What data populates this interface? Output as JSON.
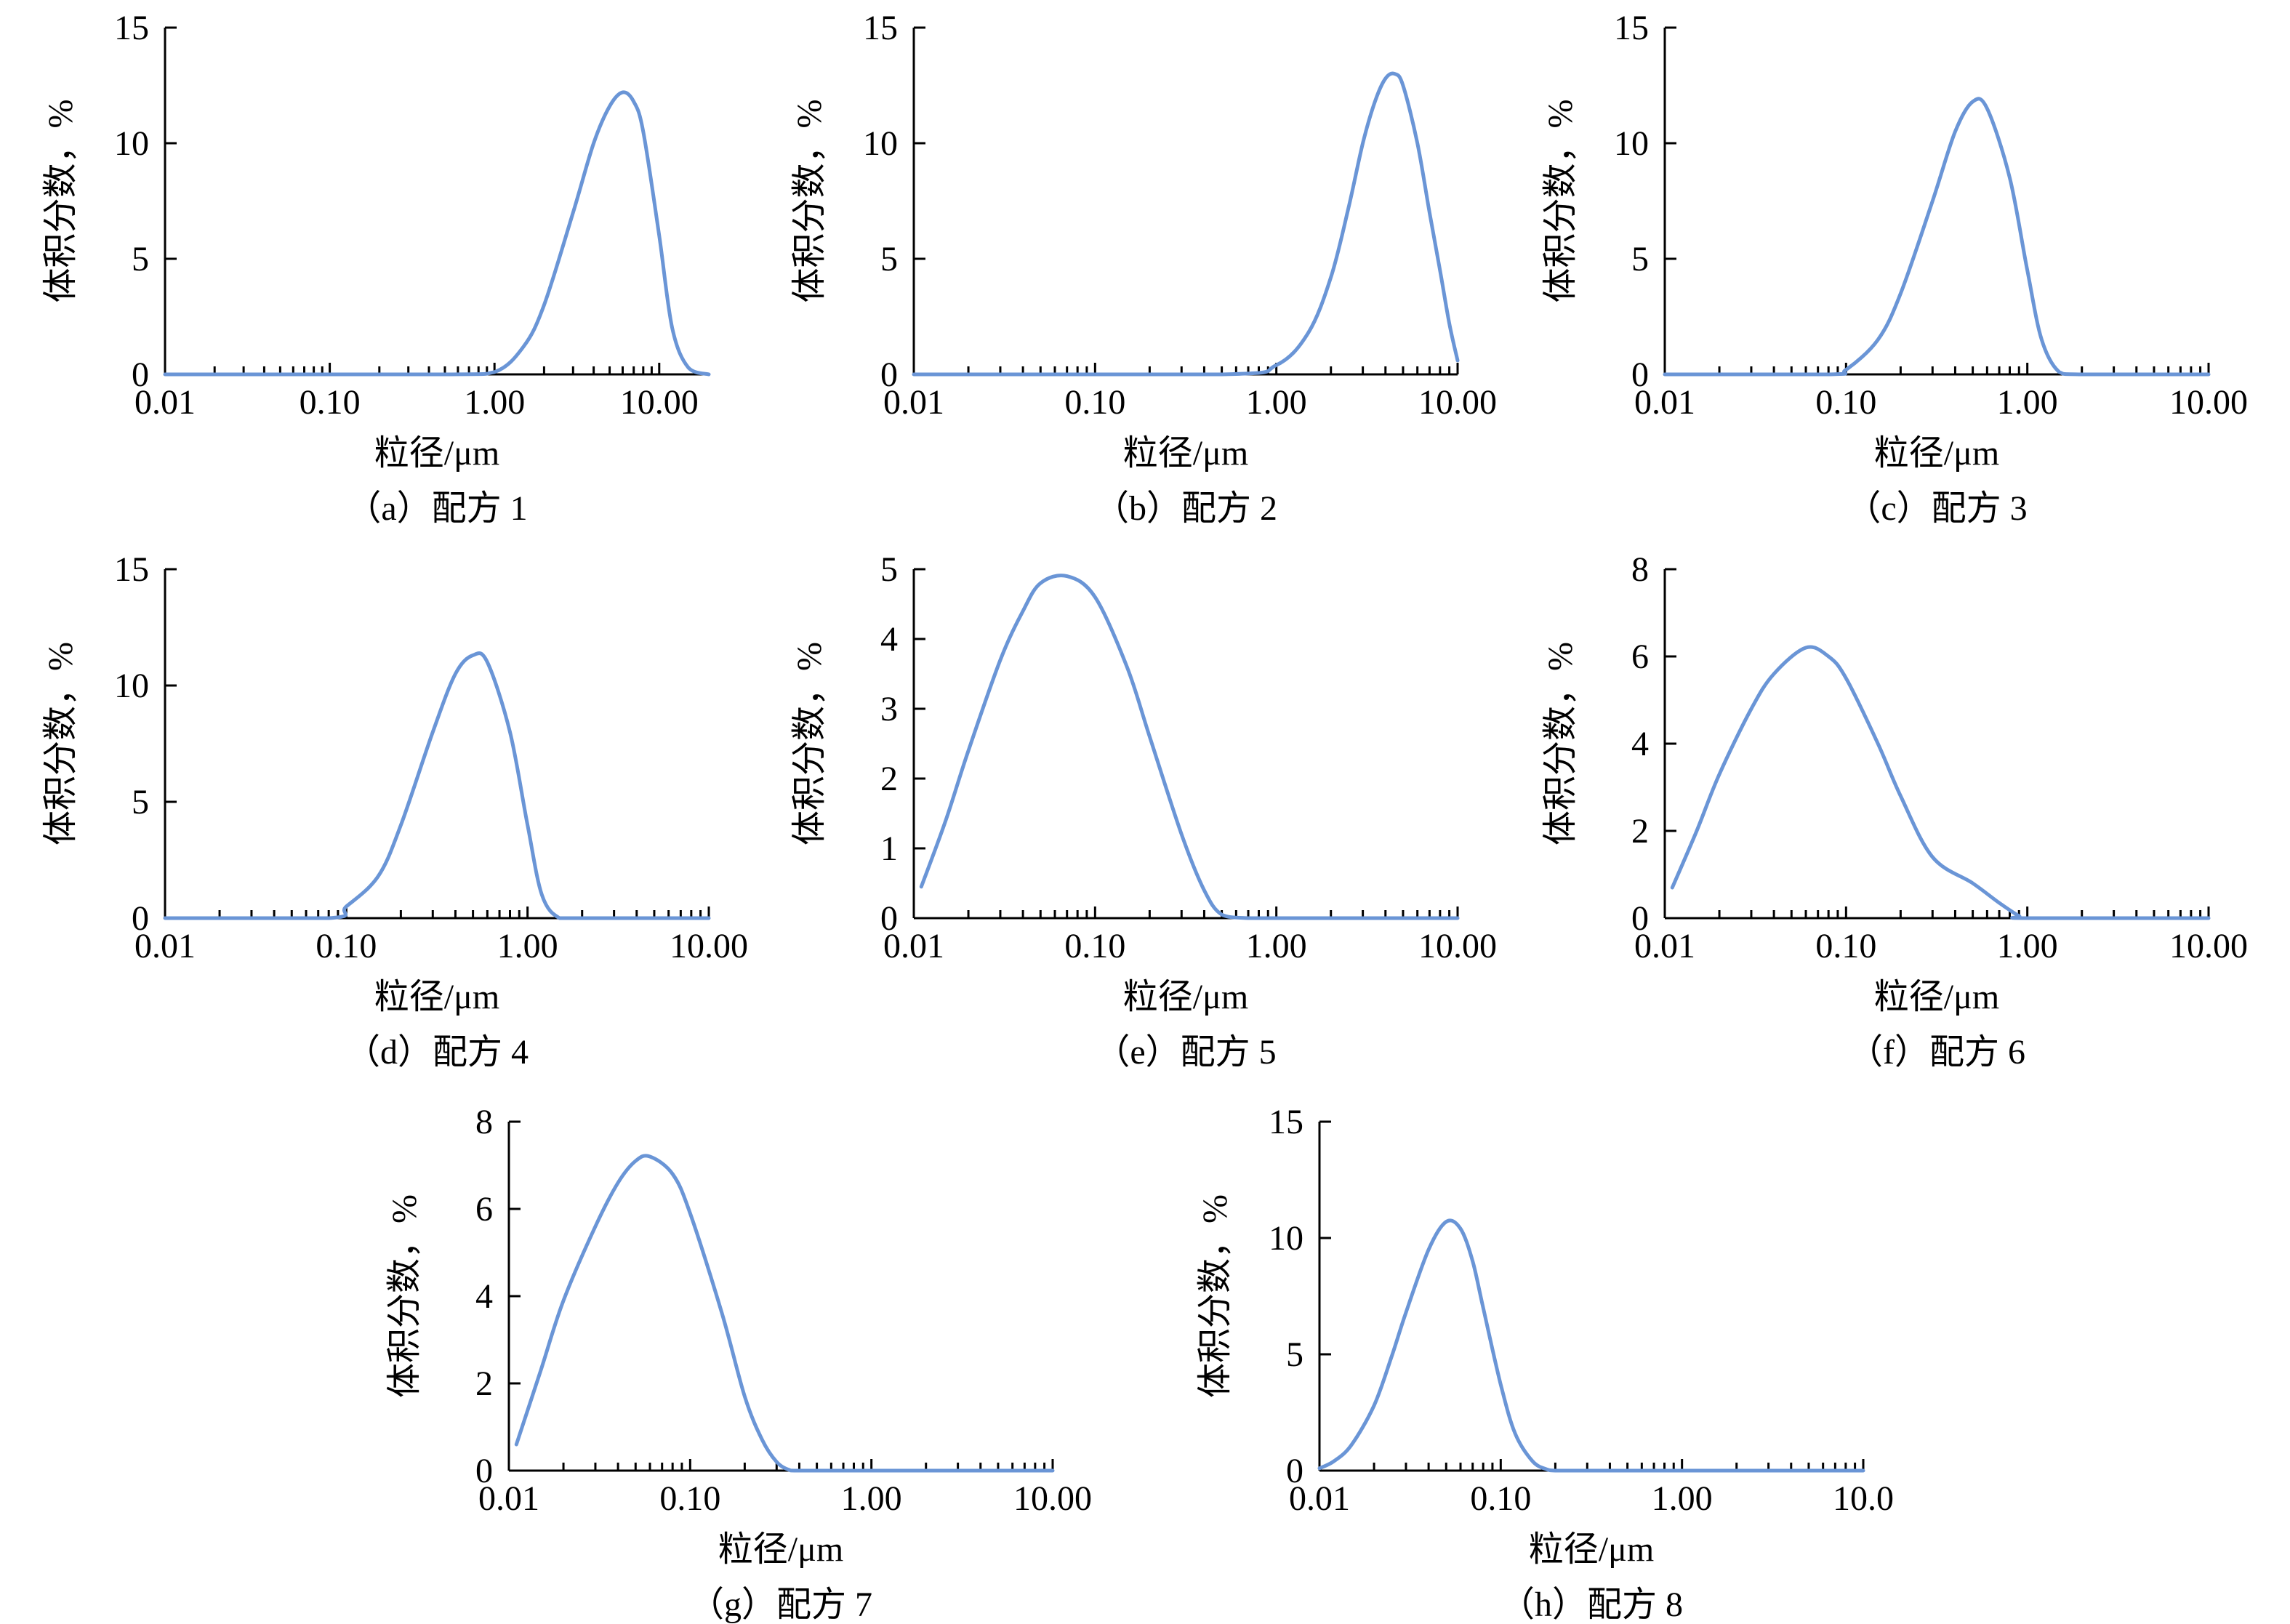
{
  "style": {
    "line_color": "#6a95d6",
    "axis_color": "#000000",
    "background": "#ffffff"
  },
  "chart_data": [
    {
      "panel": "a",
      "type": "line",
      "caption": "（a）配方 1",
      "xlabel": "粒径/μm",
      "ylabel": "体积分数，%",
      "x_scale": "log",
      "xlim": [
        0.01,
        20
      ],
      "ylim": [
        0,
        15
      ],
      "x_ticks": [
        {
          "value": 0.01,
          "label": "0.01"
        },
        {
          "value": 0.1,
          "label": "0.10"
        },
        {
          "value": 1,
          "label": "1.00"
        },
        {
          "value": 10,
          "label": "10.00"
        }
      ],
      "y_ticks": [
        {
          "value": 0,
          "label": "0"
        },
        {
          "value": 5,
          "label": "5"
        },
        {
          "value": 10,
          "label": "10"
        },
        {
          "value": 15,
          "label": "15"
        }
      ],
      "series": [
        {
          "x": [
            0.01,
            0.5,
            1.0,
            1.5,
            2.0,
            3.0,
            4.0,
            5.0,
            6.0,
            7.0,
            8.0,
            10.0,
            12.0,
            15.0,
            20.0
          ],
          "y": [
            0,
            0,
            0.1,
            1.2,
            3.0,
            7.0,
            10.0,
            11.6,
            12.2,
            11.8,
            10.5,
            6.0,
            2.0,
            0.3,
            0
          ]
        }
      ]
    },
    {
      "panel": "b",
      "type": "line",
      "caption": "（b）配方 2",
      "xlabel": "粒径/μm",
      "ylabel": "体积分数，%",
      "x_scale": "log",
      "xlim": [
        0.01,
        10
      ],
      "ylim": [
        0,
        15
      ],
      "x_ticks": [
        {
          "value": 0.01,
          "label": "0.01"
        },
        {
          "value": 0.1,
          "label": "0.10"
        },
        {
          "value": 1,
          "label": "1.00"
        },
        {
          "value": 10,
          "label": "10.00"
        }
      ],
      "y_ticks": [
        {
          "value": 0,
          "label": "0"
        },
        {
          "value": 5,
          "label": "5"
        },
        {
          "value": 10,
          "label": "10"
        },
        {
          "value": 15,
          "label": "15"
        }
      ],
      "series": [
        {
          "x": [
            0.01,
            0.5,
            1.0,
            1.5,
            2.0,
            2.5,
            3.0,
            3.5,
            4.0,
            4.5,
            5.0,
            6.0,
            7.0,
            8.0,
            9.0,
            10.0
          ],
          "y": [
            0,
            0,
            0.4,
            1.8,
            4.2,
            7.2,
            10.0,
            11.8,
            12.8,
            13.0,
            12.5,
            10.0,
            7.0,
            4.5,
            2.2,
            0.6
          ]
        }
      ]
    },
    {
      "panel": "c",
      "type": "line",
      "caption": "（c）配方 3",
      "xlabel": "粒径/μm",
      "ylabel": "体积分数，%",
      "x_scale": "log",
      "xlim": [
        0.01,
        10
      ],
      "ylim": [
        0,
        15
      ],
      "x_ticks": [
        {
          "value": 0.01,
          "label": "0.01"
        },
        {
          "value": 0.1,
          "label": "0.10"
        },
        {
          "value": 1,
          "label": "1.00"
        },
        {
          "value": 10,
          "label": "10.00"
        }
      ],
      "y_ticks": [
        {
          "value": 0,
          "label": "0"
        },
        {
          "value": 5,
          "label": "5"
        },
        {
          "value": 10,
          "label": "10"
        },
        {
          "value": 15,
          "label": "15"
        }
      ],
      "series": [
        {
          "x": [
            0.01,
            0.08,
            0.1,
            0.15,
            0.2,
            0.3,
            0.4,
            0.5,
            0.6,
            0.8,
            1.0,
            1.2,
            1.5,
            2.0,
            10.0
          ],
          "y": [
            0,
            0,
            0.2,
            1.5,
            3.5,
            7.5,
            10.5,
            11.8,
            11.5,
            8.5,
            4.5,
            1.5,
            0.1,
            0,
            0
          ]
        }
      ]
    },
    {
      "panel": "d",
      "type": "line",
      "caption": "（d）配方 4",
      "xlabel": "粒径/μm",
      "ylabel": "体积分数，%",
      "x_scale": "log",
      "xlim": [
        0.01,
        10
      ],
      "ylim": [
        0,
        15
      ],
      "x_ticks": [
        {
          "value": 0.01,
          "label": "0.01"
        },
        {
          "value": 0.1,
          "label": "0.10"
        },
        {
          "value": 1,
          "label": "1.00"
        },
        {
          "value": 10,
          "label": "10.00"
        }
      ],
      "y_ticks": [
        {
          "value": 0,
          "label": "0"
        },
        {
          "value": 5,
          "label": "5"
        },
        {
          "value": 10,
          "label": "10"
        },
        {
          "value": 15,
          "label": "15"
        }
      ],
      "series": [
        {
          "x": [
            0.01,
            0.08,
            0.1,
            0.15,
            0.2,
            0.3,
            0.4,
            0.5,
            0.6,
            0.8,
            1.0,
            1.2,
            1.5,
            2.0,
            10.0
          ],
          "y": [
            0,
            0,
            0.5,
            1.8,
            4.0,
            8.0,
            10.5,
            11.3,
            11.0,
            8.0,
            4.0,
            1.0,
            0,
            0,
            0
          ]
        }
      ]
    },
    {
      "panel": "e",
      "type": "line",
      "caption": "（e）配方 5",
      "xlabel": "粒径/μm",
      "ylabel": "体积分数，%",
      "x_scale": "log",
      "xlim": [
        0.01,
        10
      ],
      "ylim": [
        0,
        5
      ],
      "x_ticks": [
        {
          "value": 0.01,
          "label": "0.01"
        },
        {
          "value": 0.1,
          "label": "0.10"
        },
        {
          "value": 1,
          "label": "1.00"
        },
        {
          "value": 10,
          "label": "10.00"
        }
      ],
      "y_ticks": [
        {
          "value": 0,
          "label": "0"
        },
        {
          "value": 1,
          "label": "1"
        },
        {
          "value": 2,
          "label": "2"
        },
        {
          "value": 3,
          "label": "3"
        },
        {
          "value": 4,
          "label": "4"
        },
        {
          "value": 5,
          "label": "5"
        }
      ],
      "series": [
        {
          "x": [
            0.011,
            0.015,
            0.02,
            0.03,
            0.04,
            0.05,
            0.07,
            0.1,
            0.15,
            0.2,
            0.3,
            0.4,
            0.5,
            0.7,
            1.0,
            10.0
          ],
          "y": [
            0.45,
            1.4,
            2.4,
            3.7,
            4.4,
            4.8,
            4.9,
            4.6,
            3.6,
            2.6,
            1.2,
            0.4,
            0.05,
            0,
            0,
            0
          ]
        }
      ]
    },
    {
      "panel": "f",
      "type": "line",
      "caption": "（f）配方 6",
      "xlabel": "粒径/μm",
      "ylabel": "体积分数，%",
      "x_scale": "log",
      "xlim": [
        0.01,
        10
      ],
      "ylim": [
        0,
        8
      ],
      "x_ticks": [
        {
          "value": 0.01,
          "label": "0.01"
        },
        {
          "value": 0.1,
          "label": "0.10"
        },
        {
          "value": 1,
          "label": "1.00"
        },
        {
          "value": 10,
          "label": "10.00"
        }
      ],
      "y_ticks": [
        {
          "value": 0,
          "label": "0"
        },
        {
          "value": 2,
          "label": "2"
        },
        {
          "value": 4,
          "label": "4"
        },
        {
          "value": 6,
          "label": "6"
        },
        {
          "value": 8,
          "label": "8"
        }
      ],
      "series": [
        {
          "x": [
            0.011,
            0.015,
            0.02,
            0.03,
            0.04,
            0.06,
            0.08,
            0.1,
            0.15,
            0.2,
            0.3,
            0.5,
            0.7,
            0.9,
            1.0,
            10.0
          ],
          "y": [
            0.7,
            2.0,
            3.3,
            4.8,
            5.6,
            6.2,
            6.0,
            5.5,
            4.0,
            2.8,
            1.4,
            0.8,
            0.35,
            0.05,
            0,
            0
          ]
        }
      ]
    },
    {
      "panel": "g",
      "type": "line",
      "caption": "（g）配方 7",
      "xlabel": "粒径/μm",
      "ylabel": "体积分数，%",
      "x_scale": "log",
      "xlim": [
        0.01,
        10
      ],
      "ylim": [
        0,
        8
      ],
      "x_ticks": [
        {
          "value": 0.01,
          "label": "0.01"
        },
        {
          "value": 0.1,
          "label": "0.10"
        },
        {
          "value": 1,
          "label": "1.00"
        },
        {
          "value": 10,
          "label": "10.00"
        }
      ],
      "y_ticks": [
        {
          "value": 0,
          "label": "0"
        },
        {
          "value": 2,
          "label": "2"
        },
        {
          "value": 4,
          "label": "4"
        },
        {
          "value": 6,
          "label": "6"
        },
        {
          "value": 8,
          "label": "8"
        }
      ],
      "series": [
        {
          "x": [
            0.011,
            0.015,
            0.02,
            0.03,
            0.04,
            0.05,
            0.06,
            0.08,
            0.1,
            0.15,
            0.2,
            0.25,
            0.3,
            0.35,
            0.4,
            1.0,
            10.0
          ],
          "y": [
            0.6,
            2.3,
            3.9,
            5.6,
            6.6,
            7.1,
            7.2,
            6.8,
            5.9,
            3.6,
            1.7,
            0.7,
            0.2,
            0.02,
            0,
            0,
            0
          ]
        }
      ]
    },
    {
      "panel": "h",
      "type": "line",
      "caption": "（h）配方 8",
      "xlabel": "粒径/μm",
      "ylabel": "体积分数，%",
      "x_scale": "log",
      "xlim": [
        0.01,
        10
      ],
      "ylim": [
        0,
        15
      ],
      "x_ticks": [
        {
          "value": 0.01,
          "label": "0.01"
        },
        {
          "value": 0.1,
          "label": "0.10"
        },
        {
          "value": 1,
          "label": "1.00"
        },
        {
          "value": 10,
          "label": "10.0"
        }
      ],
      "y_ticks": [
        {
          "value": 0,
          "label": "0"
        },
        {
          "value": 5,
          "label": "5"
        },
        {
          "value": 10,
          "label": "10"
        },
        {
          "value": 15,
          "label": "15"
        }
      ],
      "series": [
        {
          "x": [
            0.01,
            0.012,
            0.015,
            0.02,
            0.025,
            0.03,
            0.04,
            0.05,
            0.06,
            0.07,
            0.08,
            0.1,
            0.12,
            0.15,
            0.18,
            0.2,
            0.3,
            10.0
          ],
          "y": [
            0.1,
            0.4,
            1.1,
            2.8,
            4.9,
            6.8,
            9.5,
            10.7,
            10.4,
            9.0,
            7.0,
            3.7,
            1.6,
            0.4,
            0.05,
            0,
            0,
            0
          ]
        }
      ]
    }
  ]
}
